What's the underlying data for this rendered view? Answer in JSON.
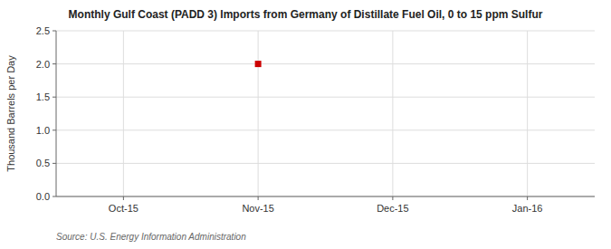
{
  "chart_data": {
    "type": "scatter",
    "title": "Monthly Gulf Coast (PADD 3) Imports from Germany of Distillate Fuel Oil, 0 to 15 ppm Sulfur",
    "y_label": "Thousand Barrels per Day",
    "source": "Source: U.S. Energy Information Administration",
    "categories": [
      "Oct-15",
      "Nov-15",
      "Dec-15",
      "Jan-16"
    ],
    "values": [
      null,
      2.0,
      null,
      null
    ],
    "color": "#cc0000",
    "marker": "square",
    "ylim": [
      0.0,
      2.5
    ],
    "yticks": [
      {
        "value": 0.0,
        "label": "0.0"
      },
      {
        "value": 0.5,
        "label": "0.5"
      },
      {
        "value": 1.0,
        "label": "1.0"
      },
      {
        "value": 1.5,
        "label": "1.5"
      },
      {
        "value": 2.0,
        "label": "2.0"
      },
      {
        "value": 2.5,
        "label": "2.5"
      }
    ],
    "grid": true
  }
}
